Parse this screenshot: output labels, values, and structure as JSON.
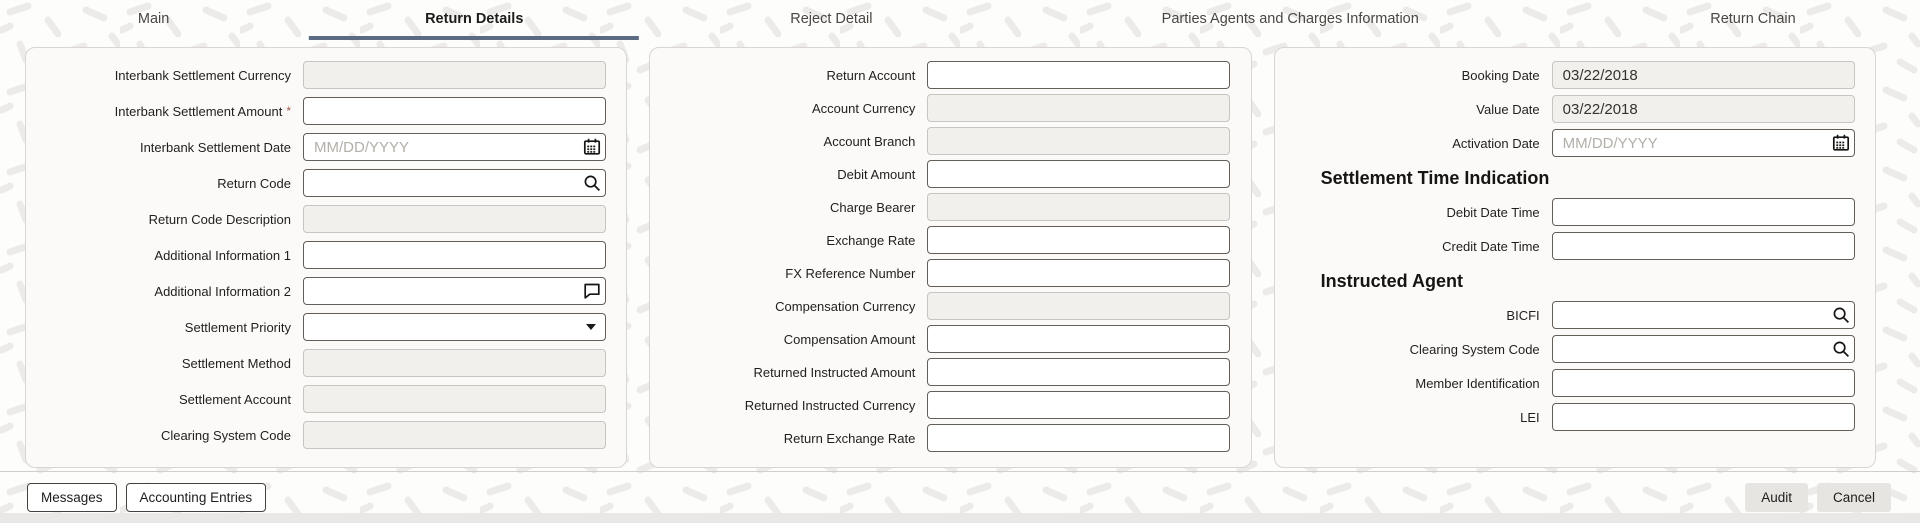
{
  "tabs": [
    {
      "label": "Main",
      "active": false
    },
    {
      "label": "Return Details",
      "active": true
    },
    {
      "label": "Reject Detail",
      "active": false
    },
    {
      "label": "Parties Agents and Charges Information",
      "active": false
    },
    {
      "label": "Return Chain",
      "active": false
    }
  ],
  "panels": [
    {
      "fields": [
        {
          "label": "Interbank Settlement Currency",
          "type": "disabled",
          "value": ""
        },
        {
          "label": "Interbank Settlement Amount",
          "type": "text",
          "required": true,
          "value": ""
        },
        {
          "label": "Interbank Settlement Date",
          "type": "date",
          "placeholder": "MM/DD/YYYY",
          "value": ""
        },
        {
          "label": "Return Code",
          "type": "lov",
          "value": ""
        },
        {
          "label": "Return Code Description",
          "type": "disabled",
          "value": ""
        },
        {
          "label": "Additional Information 1",
          "type": "text",
          "value": ""
        },
        {
          "label": "Additional Information 2",
          "type": "comment",
          "value": ""
        },
        {
          "label": "Settlement Priority",
          "type": "select",
          "value": ""
        },
        {
          "label": "Settlement Method",
          "type": "disabled",
          "value": ""
        },
        {
          "label": "Settlement Account",
          "type": "disabled",
          "value": ""
        },
        {
          "label": "Clearing System Code",
          "type": "disabled",
          "value": ""
        }
      ]
    },
    {
      "fields": [
        {
          "label": "Return Account",
          "type": "text",
          "value": ""
        },
        {
          "label": "Account Currency",
          "type": "disabled",
          "value": ""
        },
        {
          "label": "Account Branch",
          "type": "disabled",
          "value": ""
        },
        {
          "label": "Debit Amount",
          "type": "text",
          "value": ""
        },
        {
          "label": "Charge Bearer",
          "type": "disabled",
          "value": ""
        },
        {
          "label": "Exchange Rate",
          "type": "text",
          "value": ""
        },
        {
          "label": "FX Reference Number",
          "type": "text",
          "value": ""
        },
        {
          "label": "Compensation Currency",
          "type": "disabled",
          "value": ""
        },
        {
          "label": "Compensation Amount",
          "type": "text",
          "value": ""
        },
        {
          "label": "Returned Instructed Amount",
          "type": "text",
          "value": ""
        },
        {
          "label": "Returned Instructed Currency",
          "type": "text",
          "value": ""
        },
        {
          "label": "Return Exchange Rate",
          "type": "text",
          "value": ""
        }
      ]
    },
    {
      "fields": [
        {
          "label": "Booking Date",
          "type": "disabled",
          "value": "03/22/2018"
        },
        {
          "label": "Value Date",
          "type": "disabled",
          "value": "03/22/2018"
        },
        {
          "label": "Activation Date",
          "type": "date",
          "placeholder": "MM/DD/YYYY",
          "value": ""
        },
        {
          "heading": "Settlement Time Indication"
        },
        {
          "label": "Debit Date Time",
          "type": "text",
          "value": ""
        },
        {
          "label": "Credit Date Time",
          "type": "text",
          "value": ""
        },
        {
          "heading": "Instructed Agent"
        },
        {
          "label": "BICFI",
          "type": "lov",
          "value": ""
        },
        {
          "label": "Clearing System Code",
          "type": "lov",
          "value": ""
        },
        {
          "label": "Member Identification",
          "type": "text",
          "value": ""
        },
        {
          "label": "LEI",
          "type": "text",
          "value": ""
        }
      ]
    }
  ],
  "footer": {
    "left_buttons": [
      "Messages",
      "Accounting Entries"
    ],
    "right_buttons": [
      "Audit",
      "Cancel"
    ]
  },
  "symbols": {
    "required": "*"
  },
  "colors": {
    "tab_underline": "#5b6b84",
    "required_marker": "#a15b4b",
    "panel_background": "#fbfaf9",
    "disabled_field_background": "#f2f0ed"
  }
}
